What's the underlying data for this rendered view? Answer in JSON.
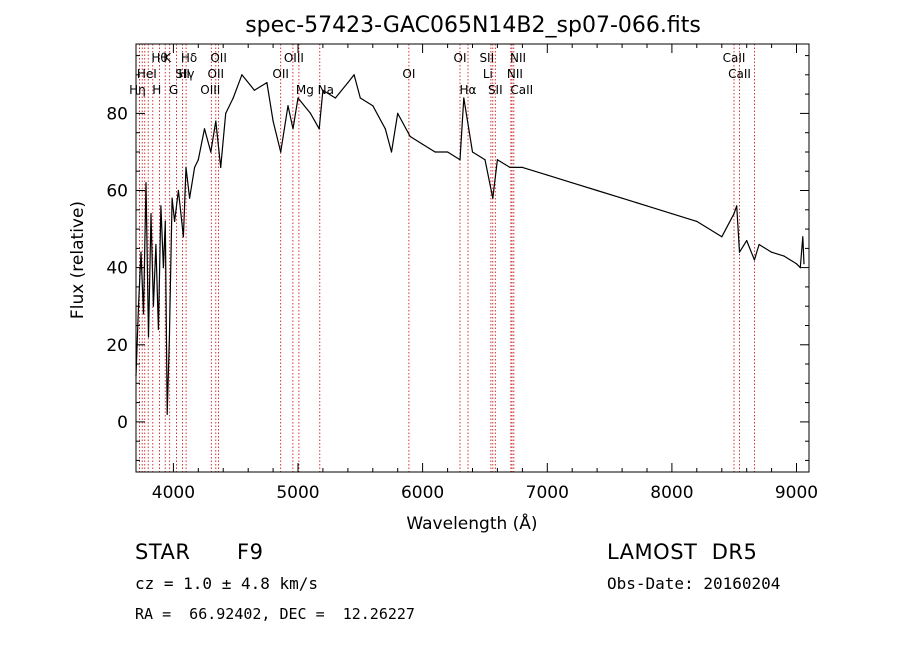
{
  "chart_data": {
    "type": "line",
    "title": "spec-57423-GAC065N14B2_sp07-066.fits",
    "xlabel": "Wavelength (Å)",
    "ylabel": "Flux (relative)",
    "xlim": [
      3700,
      9100
    ],
    "ylim": [
      -13,
      98
    ],
    "x_ticks": [
      4000,
      5000,
      6000,
      7000,
      8000,
      9000
    ],
    "y_ticks": [
      0,
      20,
      40,
      60,
      80
    ],
    "grid": false,
    "series": [
      {
        "color": "#000000",
        "x": [
          3700,
          3720,
          3740,
          3760,
          3780,
          3800,
          3820,
          3840,
          3860,
          3880,
          3900,
          3920,
          3935,
          3950,
          3968,
          3990,
          4010,
          4040,
          4080,
          4101,
          4130,
          4170,
          4200,
          4250,
          4300,
          4340,
          4380,
          4420,
          4480,
          4550,
          4650,
          4750,
          4800,
          4861,
          4920,
          4960,
          5000,
          5100,
          5170,
          5200,
          5300,
          5400,
          5450,
          5500,
          5600,
          5700,
          5750,
          5800,
          5900,
          6000,
          6100,
          6200,
          6300,
          6330,
          6400,
          6500,
          6563,
          6600,
          6700,
          6800,
          7000,
          7200,
          7400,
          7600,
          7800,
          8000,
          8200,
          8400,
          8498,
          8520,
          8542,
          8600,
          8662,
          8700,
          8800,
          8900,
          9000,
          9030,
          9050,
          9060
        ],
        "y": [
          12,
          30,
          44,
          28,
          62,
          22,
          54,
          30,
          46,
          24,
          56,
          40,
          52,
          2,
          22,
          58,
          52,
          60,
          48,
          66,
          58,
          66,
          68,
          76,
          70,
          78,
          66,
          80,
          84,
          90,
          86,
          88,
          78,
          70,
          82,
          76,
          84,
          80,
          76,
          86,
          84,
          88,
          90,
          84,
          82,
          76,
          70,
          80,
          74,
          72,
          70,
          70,
          68,
          84,
          70,
          68,
          58,
          68,
          66,
          66,
          64,
          62,
          60,
          58,
          56,
          54,
          52,
          48,
          54,
          56,
          44,
          47,
          42,
          46,
          44,
          43,
          41,
          40,
          48,
          41
        ]
      }
    ],
    "line_markers": {
      "color": "#cc0000",
      "wavelengths": [
        3727,
        3750,
        3771,
        3798,
        3835,
        3889,
        3934,
        3970,
        4026,
        4072,
        4102,
        4304,
        4340,
        4363,
        4861,
        4959,
        5007,
        5175,
        5890,
        6300,
        6364,
        6548,
        6563,
        6583,
        6708,
        6717,
        6731,
        8498,
        8542,
        8662
      ]
    },
    "line_labels": [
      "Hθ",
      "K",
      "Hδ",
      "OII",
      "OIII",
      "OII",
      "HeI",
      "SII",
      "Hγ",
      "OII",
      "Hη",
      "H",
      "G",
      "OIII",
      "Mg",
      "Na",
      "OI",
      "OI",
      "Hα",
      "SII",
      "NII",
      "Li",
      "NII",
      "SII",
      "CaII",
      "CaII",
      "CaII"
    ]
  },
  "info": {
    "object_class": "STAR",
    "subclass": "F9",
    "survey": "LAMOST  DR5",
    "cz": "cz = 1.0 ± 4.8 km/s",
    "obs_date": "Obs-Date: 20160204",
    "coords": "RA =  66.92402, DEC =  12.26227"
  }
}
